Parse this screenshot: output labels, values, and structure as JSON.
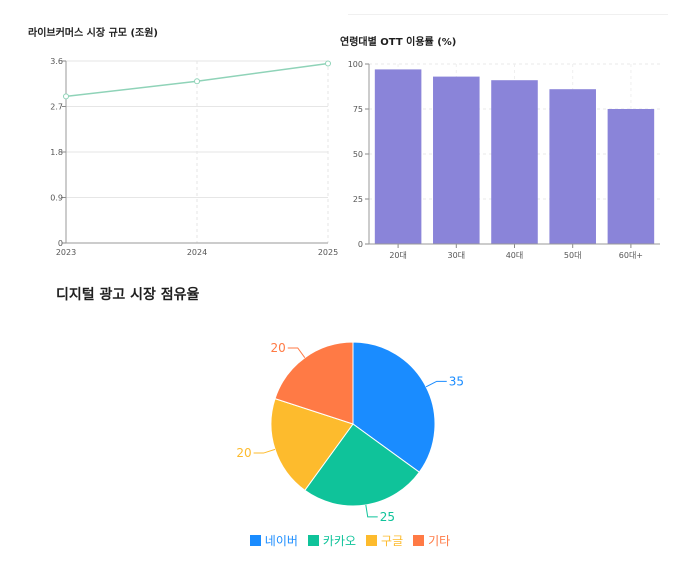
{
  "charts": {
    "live_commerce": {
      "title": "라이브커머스 시장 규모 (조원)"
    },
    "ott_usage": {
      "title": "연령대별 OTT 이용률 (%)"
    },
    "ad_share": {
      "title": "디지털 광고 시장 점유율"
    }
  },
  "chart_data": [
    {
      "type": "line",
      "title": "라이브커머스 시장 규모 (조원)",
      "x": [
        "2023",
        "2024",
        "2025"
      ],
      "series": [
        {
          "values": [
            2.9,
            3.2,
            3.55
          ]
        }
      ],
      "yticks": [
        "0",
        "0.9",
        "1.8",
        "2.7",
        "3.6"
      ],
      "ylim": [
        0,
        3.6
      ],
      "color": "#8fd3b8",
      "grid": true
    },
    {
      "type": "bar",
      "title": "연령대별 OTT 이용률 (%)",
      "categories": [
        "20대",
        "30대",
        "40대",
        "50대",
        "60대+"
      ],
      "values": [
        97,
        93,
        91,
        86,
        75
      ],
      "yticks": [
        "0",
        "25",
        "50",
        "75",
        "100"
      ],
      "ylim": [
        0,
        100
      ],
      "color": "#8a84d9",
      "grid": true
    },
    {
      "type": "pie",
      "title": "디지털 광고 시장 점유율",
      "labels": [
        "네이버",
        "카카오",
        "구글",
        "기타"
      ],
      "values": [
        35,
        25,
        20,
        20
      ],
      "colors": [
        "#1a8cff",
        "#0fc39a",
        "#fdbb2d",
        "#ff7a45"
      ],
      "legend_position": "bottom"
    }
  ]
}
